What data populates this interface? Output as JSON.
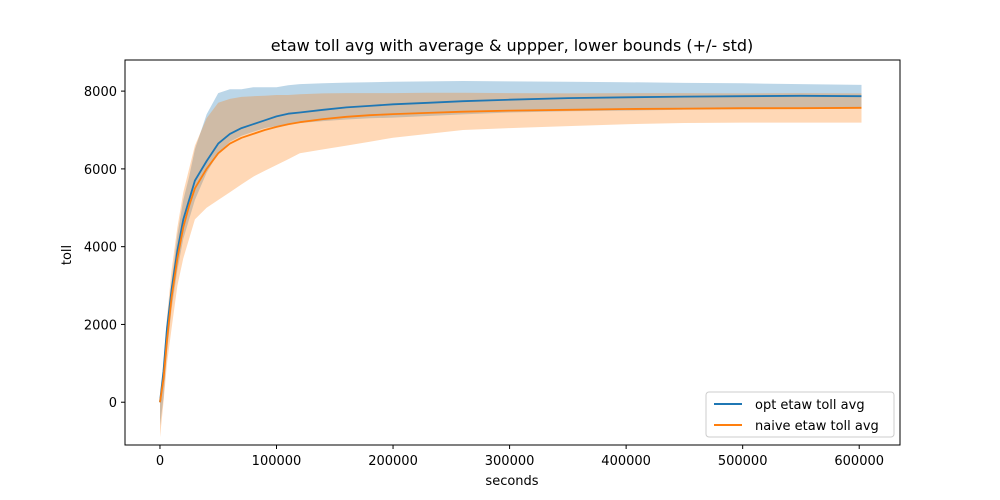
{
  "chart_data": {
    "type": "line",
    "title": "etaw toll avg with average & uppper, lower bounds (+/- std)",
    "xlabel": "seconds",
    "ylabel": "toll",
    "xlim": [
      -30000,
      635000
    ],
    "ylim": [
      -1100,
      8800
    ],
    "x_ticks": [
      0,
      100000,
      200000,
      300000,
      400000,
      500000,
      600000
    ],
    "x_tick_labels": [
      "0",
      "100000",
      "200000",
      "300000",
      "400000",
      "500000",
      "600000"
    ],
    "y_ticks": [
      0,
      2000,
      4000,
      6000,
      8000
    ],
    "y_tick_labels": [
      "0",
      "2000",
      "4000",
      "6000",
      "8000"
    ],
    "grid": false,
    "legend_position": "lower right",
    "series": [
      {
        "name": "opt etaw toll avg",
        "color": "#1f77b4",
        "band_color": "#1f77b4",
        "band_opacity": 0.3,
        "x": [
          0,
          3000,
          6000,
          10000,
          15000,
          20000,
          25000,
          30000,
          40000,
          50000,
          60000,
          70000,
          80000,
          90000,
          100000,
          110000,
          120000,
          140000,
          160000,
          180000,
          200000,
          230000,
          260000,
          300000,
          350000,
          400000,
          450000,
          500000,
          550000,
          602000
        ],
        "mean": [
          0,
          800,
          1900,
          2900,
          3900,
          4700,
          5200,
          5700,
          6200,
          6650,
          6900,
          7050,
          7150,
          7250,
          7350,
          7420,
          7450,
          7520,
          7580,
          7620,
          7660,
          7700,
          7740,
          7780,
          7820,
          7840,
          7860,
          7870,
          7880,
          7870
        ],
        "upper": [
          0,
          700,
          1800,
          3100,
          4300,
          5200,
          5800,
          6500,
          7400,
          7950,
          8050,
          8050,
          8100,
          8100,
          8100,
          8150,
          8180,
          8200,
          8220,
          8230,
          8240,
          8250,
          8260,
          8250,
          8240,
          8230,
          8210,
          8200,
          8180,
          8160
        ],
        "lower": [
          -600,
          100,
          1300,
          2400,
          3400,
          4200,
          4700,
          5200,
          5900,
          6400,
          6700,
          6850,
          6950,
          7050,
          7100,
          7150,
          7180,
          7230,
          7270,
          7300,
          7320,
          7360,
          7400,
          7450,
          7480,
          7500,
          7520,
          7530,
          7540,
          7550
        ]
      },
      {
        "name": "naive etaw toll avg",
        "color": "#ff7f0e",
        "band_color": "#ff7f0e",
        "band_opacity": 0.3,
        "x": [
          0,
          3000,
          6000,
          10000,
          15000,
          20000,
          25000,
          30000,
          40000,
          50000,
          60000,
          70000,
          80000,
          90000,
          100000,
          110000,
          120000,
          140000,
          160000,
          180000,
          200000,
          230000,
          260000,
          300000,
          350000,
          400000,
          450000,
          500000,
          550000,
          602000
        ],
        "mean": [
          0,
          600,
          1600,
          2700,
          3700,
          4500,
          5050,
          5500,
          6000,
          6400,
          6650,
          6800,
          6900,
          7000,
          7080,
          7150,
          7200,
          7280,
          7340,
          7380,
          7410,
          7440,
          7470,
          7500,
          7520,
          7540,
          7550,
          7560,
          7560,
          7570
        ],
        "upper": [
          0,
          1000,
          2200,
          3400,
          4500,
          5400,
          6000,
          6600,
          7300,
          7700,
          7800,
          7850,
          7870,
          7880,
          7900,
          7900,
          7920,
          7940,
          7950,
          7950,
          7950,
          7960,
          7960,
          7950,
          7940,
          7950,
          7950,
          7940,
          7950,
          7940
        ],
        "lower": [
          -900,
          0,
          1000,
          1900,
          3000,
          3700,
          4200,
          4700,
          5000,
          5200,
          5400,
          5600,
          5800,
          5950,
          6100,
          6250,
          6400,
          6500,
          6600,
          6700,
          6800,
          6900,
          7000,
          7050,
          7100,
          7150,
          7180,
          7190,
          7190,
          7190
        ]
      }
    ]
  }
}
